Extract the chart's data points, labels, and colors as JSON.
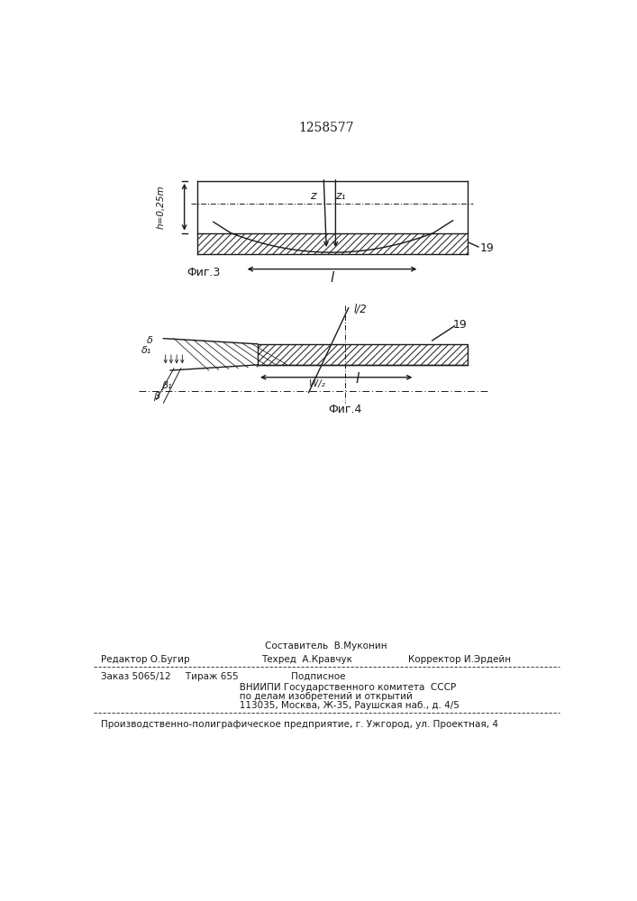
{
  "title": "1258577",
  "bg_color": "#ffffff",
  "line_color": "#1a1a1a",
  "fig3_label": "Фиг.3",
  "fig4_label": "Фиг.4",
  "footer_line1": "Составитель  В.Муконин",
  "footer_line2_left": "Редактор О.Бугир",
  "footer_line2_mid": "Техред  А.Кравчук",
  "footer_line2_right": "Корректор И.Эрдейн",
  "footer_line3": "Заказ 5065/12     Тираж 655                  Подписное",
  "footer_line4": "       ВНИИПИ Государственного комитета  СССР",
  "footer_line5": "       по делам изобретений и открытий",
  "footer_line6": "       113035, Москва, Ж-35, Раушская наб., д. 4/5",
  "footer_line7": "Производственно-полиграфическое предприятие, г. Ужгород, ул. Проектная, 4"
}
